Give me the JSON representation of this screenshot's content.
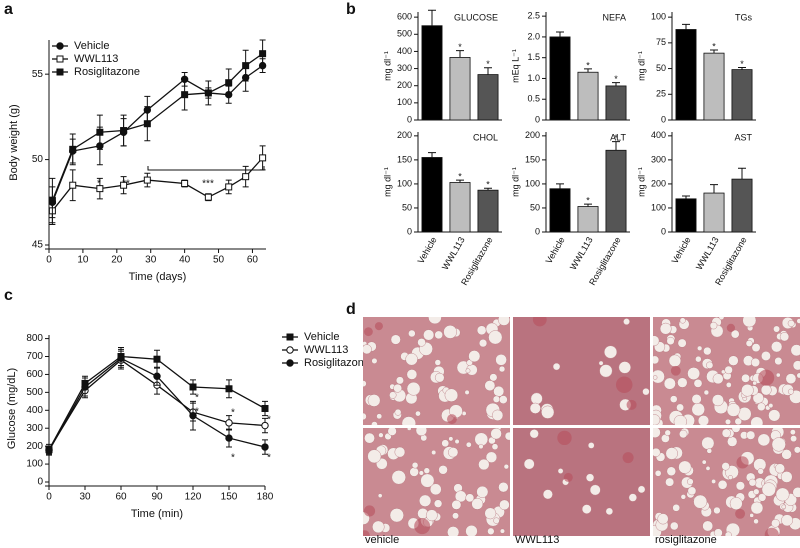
{
  "panel_labels": [
    "a",
    "b",
    "c",
    "d"
  ],
  "chart_data": [
    {
      "type": "line",
      "x_label": "Time (days)",
      "y_label": "Body weight (g)",
      "x": [
        1,
        7,
        15,
        22,
        29,
        40,
        47,
        53,
        58,
        63
      ],
      "series": [
        {
          "name": "Vehicle",
          "marker": "circle",
          "color": "#111111",
          "values": [
            47.5,
            50.5,
            50.8,
            51.6,
            52.9,
            54.7,
            53.9,
            53.8,
            54.8,
            55.5
          ],
          "errors": [
            0.9,
            0.7,
            1.1,
            0.8,
            0.8,
            0.4,
            0.3,
            0.5,
            0.8,
            0.4
          ]
        },
        {
          "name": "WWL113",
          "marker": "open-square",
          "color": "#111111",
          "values": [
            47.0,
            48.5,
            48.3,
            48.5,
            48.8,
            48.6,
            47.8,
            48.4,
            49.0,
            50.1
          ],
          "errors": [
            0.8,
            0.9,
            0.6,
            0.5,
            0.4,
            0.2,
            0.2,
            0.4,
            0.6,
            0.7
          ]
        },
        {
          "name": "Rosiglitazone",
          "marker": "square",
          "color": "#111111",
          "values": [
            47.6,
            50.6,
            51.6,
            51.7,
            52.1,
            53.8,
            53.9,
            54.5,
            55.5,
            56.2
          ],
          "errors": [
            1.3,
            0.9,
            1.0,
            0.9,
            1.0,
            0.9,
            0.7,
            0.8,
            0.9,
            0.8
          ]
        }
      ],
      "xlim": [
        0,
        64
      ],
      "xticks": [
        0,
        10,
        20,
        30,
        40,
        50,
        60
      ],
      "ylim": [
        45,
        57
      ],
      "yticks": [
        45,
        50,
        55
      ],
      "annotations": [
        "*",
        "**",
        "***"
      ]
    },
    {
      "type": "bar",
      "title": "GLUCOSE",
      "y_label": "mg dl⁻¹",
      "values": [
        550,
        365,
        265
      ],
      "errors": [
        90,
        40,
        40
      ],
      "colors": [
        "#000000",
        "#bdbdbd",
        "#555555"
      ],
      "significance": [
        null,
        "*",
        "*"
      ],
      "ylim": [
        0,
        630
      ],
      "yticks": [
        0,
        100,
        200,
        300,
        400,
        500,
        600
      ]
    },
    {
      "type": "bar",
      "title": "NEFA",
      "y_label": "mEq L⁻¹",
      "values": [
        2.0,
        1.15,
        0.82
      ],
      "errors": [
        0.12,
        0.08,
        0.08
      ],
      "colors": [
        "#000000",
        "#bdbdbd",
        "#555555"
      ],
      "significance": [
        null,
        "*",
        "*"
      ],
      "ylim": [
        0,
        2.6
      ],
      "yticks": [
        0,
        0.5,
        {
          "value": 1,
          "label": "1.0"
        },
        1.5,
        {
          "value": 2,
          "label": "2.0"
        },
        2.5
      ]
    },
    {
      "type": "bar",
      "title": "TGs",
      "y_label": "mg dl⁻¹",
      "values": [
        88,
        65,
        49
      ],
      "errors": [
        5,
        3,
        2
      ],
      "colors": [
        "#000000",
        "#bdbdbd",
        "#555555"
      ],
      "significance": [
        null,
        "*",
        "*"
      ],
      "ylim": [
        0,
        105
      ],
      "yticks": [
        0,
        25,
        50,
        75,
        100
      ]
    },
    {
      "type": "bar",
      "title": "CHOL",
      "y_label": "mg dl⁻¹",
      "categories": [
        "Vehicle",
        "WWL113",
        "Rosiglitazone"
      ],
      "values": [
        155,
        103,
        87
      ],
      "errors": [
        10,
        5,
        4
      ],
      "colors": [
        "#000000",
        "#bdbdbd",
        "#555555"
      ],
      "significance": [
        null,
        "*",
        "*"
      ],
      "ylim": [
        0,
        208
      ],
      "yticks": [
        0,
        50,
        100,
        150,
        200
      ]
    },
    {
      "type": "bar",
      "title": "ALT",
      "y_label": "mg dl⁻¹",
      "categories": [
        "Vehicle",
        "WWL113",
        "Rosiglitazone"
      ],
      "values": [
        90,
        53,
        170
      ],
      "errors": [
        10,
        5,
        18
      ],
      "colors": [
        "#000000",
        "#bdbdbd",
        "#555555"
      ],
      "significance": [
        null,
        "*",
        "*"
      ],
      "ylim": [
        0,
        208
      ],
      "yticks": [
        0,
        50,
        100,
        150,
        200
      ]
    },
    {
      "type": "bar",
      "title": "AST",
      "y_label": "mg dl⁻¹",
      "categories": [
        "Vehicle",
        "WWL113",
        "Rosiglitazone"
      ],
      "values": [
        138,
        162,
        220
      ],
      "errors": [
        12,
        35,
        45
      ],
      "colors": [
        "#000000",
        "#bdbdbd",
        "#555555"
      ],
      "significance": [
        null,
        null,
        null
      ],
      "ylim": [
        0,
        416
      ],
      "yticks": [
        0,
        100,
        200,
        300,
        400
      ]
    },
    {
      "type": "line",
      "x_label": "Time (min)",
      "y_label": "Glucose (mg/dL)",
      "x": [
        0,
        30,
        60,
        90,
        120,
        150,
        180
      ],
      "series": [
        {
          "name": "Vehicle",
          "marker": "square",
          "color": "#111111",
          "values": [
            180,
            550,
            700,
            685,
            530,
            520,
            410
          ],
          "errors": [
            20,
            40,
            50,
            50,
            40,
            50,
            40
          ]
        },
        {
          "name": "WWL113",
          "marker": "open-circle",
          "color": "#111111",
          "values": [
            180,
            510,
            680,
            540,
            390,
            330,
            315
          ],
          "errors": [
            30,
            40,
            50,
            50,
            50,
            40,
            40
          ]
        },
        {
          "name": "Rosiglitazone",
          "marker": "circle",
          "color": "#111111",
          "values": [
            175,
            530,
            690,
            590,
            370,
            245,
            195
          ],
          "errors": [
            20,
            50,
            50,
            50,
            80,
            50,
            40
          ]
        }
      ],
      "xlim": [
        0,
        180
      ],
      "xticks": [
        0,
        30,
        60,
        90,
        120,
        150,
        180
      ],
      "ylim": [
        0,
        820
      ],
      "yticks": [
        0,
        100,
        200,
        300,
        400,
        500,
        600,
        700,
        800
      ],
      "annotations": [
        "*",
        "*",
        "*",
        "*",
        "*",
        "*"
      ]
    }
  ],
  "histology": {
    "captions": [
      "vehicle",
      "WWL113",
      "rosiglitazone"
    ]
  }
}
